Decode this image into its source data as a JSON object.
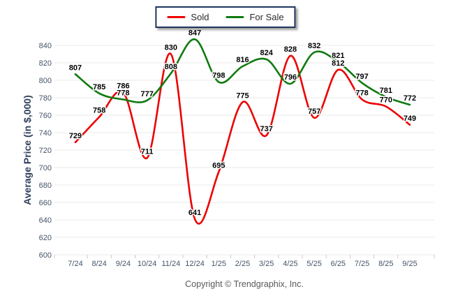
{
  "footer": {
    "copyright": "Copyright © Trendgraphix, Inc."
  },
  "colors": {
    "background": "#ffffff",
    "grid": "#e9e9e9",
    "tick": "#c9c9c9",
    "axis_text": "#44546a",
    "data_label": "#000000",
    "y_title": "#2f3f5c",
    "legend_border": "#1e355e",
    "copyright": "#595959",
    "sold": "#ec0000",
    "for_sale": "#0f7a0f"
  },
  "chart_data": {
    "type": "line",
    "title": "",
    "xlabel": "",
    "ylabel": "Average Price (in $,000)",
    "categories": [
      "7/24",
      "8/24",
      "9/24",
      "10/24",
      "11/24",
      "12/24",
      "1/25",
      "2/25",
      "3/25",
      "4/25",
      "5/25",
      "6/25",
      "7/25",
      "8/25",
      "9/25"
    ],
    "series": [
      {
        "name": "Sold",
        "color": "#ec0000",
        "values": [
          729,
          758,
          786,
          711,
          830,
          641,
          695,
          775,
          737,
          828,
          757,
          812,
          778,
          770,
          749
        ]
      },
      {
        "name": "For Sale",
        "color": "#0f7a0f",
        "values": [
          807,
          785,
          778,
          777,
          808,
          847,
          798,
          816,
          824,
          796,
          832,
          821,
          797,
          781,
          772
        ]
      }
    ],
    "ylim": [
      600,
      840
    ],
    "ytick_step": 20,
    "grid": "horizontal",
    "smooth": true,
    "point_labels": true,
    "legend_position": "top-center"
  }
}
